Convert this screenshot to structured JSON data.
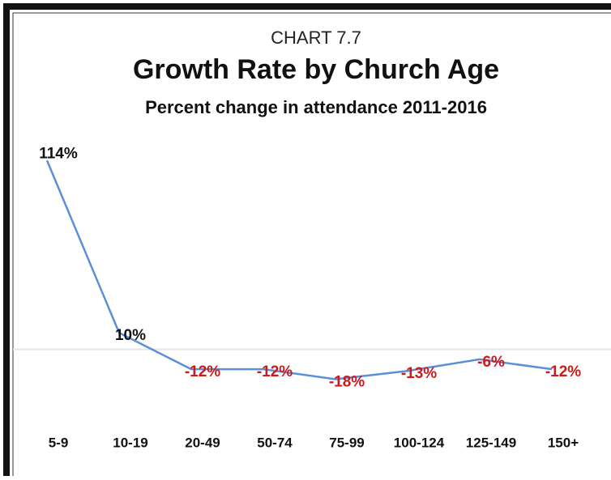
{
  "chart_data": {
    "type": "line",
    "kicker": "CHART 7.7",
    "title": "Growth Rate by Church Age",
    "subtitle": "Percent change in attendance 2011-2016",
    "categories": [
      "5-9",
      "10-19",
      "20-49",
      "50-74",
      "75-99",
      "100-124",
      "125-149",
      "150+"
    ],
    "series": [
      {
        "name": null,
        "color": "#5b8fd9",
        "values": [
          114,
          10,
          -12,
          -12,
          -18,
          -13,
          -6,
          -12
        ],
        "value_labels": [
          "114%",
          "10%",
          "-12%",
          "-12%",
          "-18%",
          "-13%",
          "-6%",
          "-12%"
        ]
      }
    ],
    "ylim": [
      -30,
      120
    ],
    "zero_line": true,
    "label_color": "#111111",
    "negative_label_color": "#cc1a1a"
  }
}
